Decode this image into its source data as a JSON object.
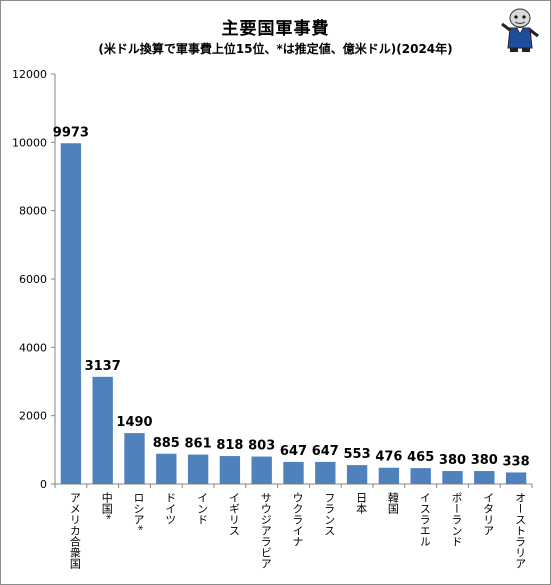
{
  "chart_data": {
    "type": "bar",
    "title": "主要国軍事費",
    "subtitle": "(米ドル換算で軍事費上位15位、*は推定値、億米ドル)(2024年)",
    "categories": [
      "アメリカ合衆国",
      "中国*",
      "ロシア*",
      "ドイツ",
      "インド",
      "イギリス",
      "サウジアラビア",
      "ウクライナ",
      "フランス",
      "日本",
      "韓国",
      "イスラエル",
      "ポーランド",
      "イタリア",
      "オーストラリア"
    ],
    "values": [
      9973,
      3137,
      1490,
      885,
      861,
      818,
      803,
      647,
      647,
      553,
      476,
      465,
      380,
      380,
      338
    ],
    "ylim": [
      0,
      12000
    ],
    "yticks": [
      0,
      2000,
      4000,
      6000,
      8000,
      10000,
      12000
    ],
    "bar_color": "#4f81bd",
    "grid": false
  },
  "mascot_icon": "mascot-character-icon"
}
